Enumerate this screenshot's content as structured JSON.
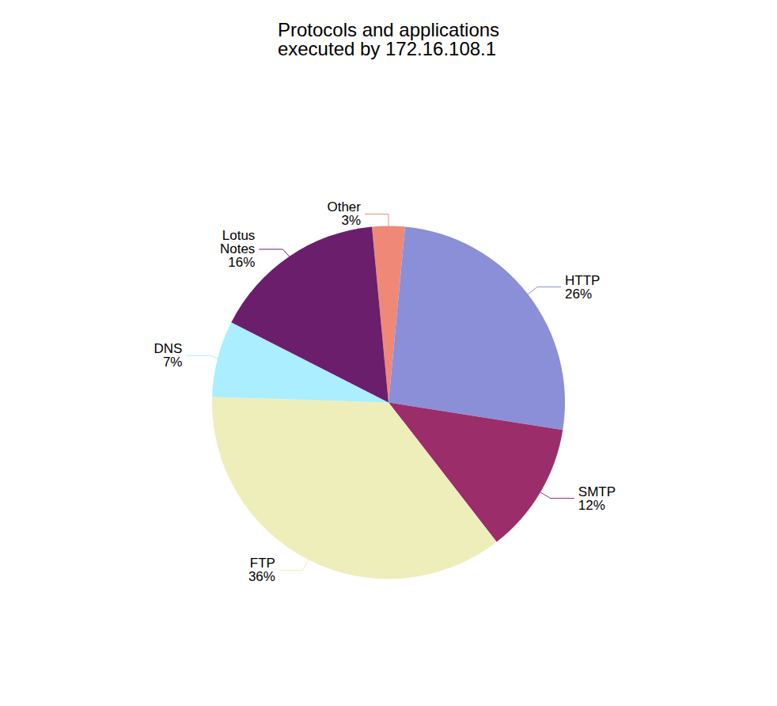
{
  "chart_data": {
    "type": "pie",
    "title": "Protocols and applications\nexecuted by 172.16.108.1",
    "categories": [
      "Other",
      "HTTP",
      "SMTP",
      "FTP",
      "DNS",
      "Lotus\nNotes"
    ],
    "values": [
      3,
      26,
      12,
      36,
      7,
      16
    ],
    "value_labels": [
      "3%",
      "26%",
      "12%",
      "36%",
      "7%",
      "16%"
    ],
    "colors": [
      "#F08878",
      "#8B8FD8",
      "#9B2D6B",
      "#EEEEBB",
      "#AAEEFF",
      "#6B1E6B"
    ],
    "data_labels": true
  }
}
